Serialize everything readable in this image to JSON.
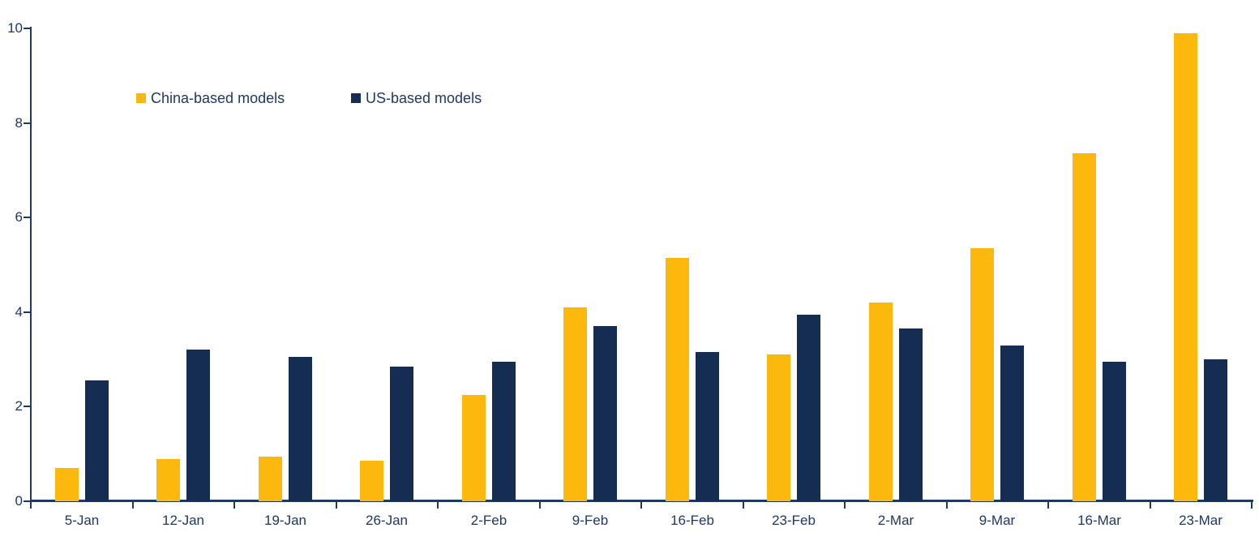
{
  "chart_data": {
    "type": "bar",
    "title": "",
    "xlabel": "",
    "ylabel": "",
    "categories": [
      "5-Jan",
      "12-Jan",
      "19-Jan",
      "26-Jan",
      "2-Feb",
      "9-Feb",
      "16-Feb",
      "23-Feb",
      "2-Mar",
      "9-Mar",
      "16-Mar",
      "23-Mar"
    ],
    "series": [
      {
        "name": "China-based models",
        "color": "#FDB80E",
        "values": [
          0.7,
          0.9,
          0.95,
          0.85,
          2.25,
          4.1,
          5.15,
          3.1,
          4.2,
          5.35,
          7.35,
          9.9
        ]
      },
      {
        "name": "US-based models",
        "color": "#152C53",
        "values": [
          2.55,
          3.2,
          3.05,
          2.85,
          2.95,
          3.7,
          3.15,
          3.95,
          3.65,
          3.3,
          2.95,
          3.0
        ]
      }
    ],
    "ylim": [
      0,
      10
    ],
    "yticks": [
      0,
      2,
      4,
      6,
      8,
      10
    ],
    "grid": false,
    "legend_position": "inside-top-left",
    "colors": {
      "axis": "#1F3864",
      "text": "#1F3864",
      "background": "#FFFFFF"
    }
  }
}
